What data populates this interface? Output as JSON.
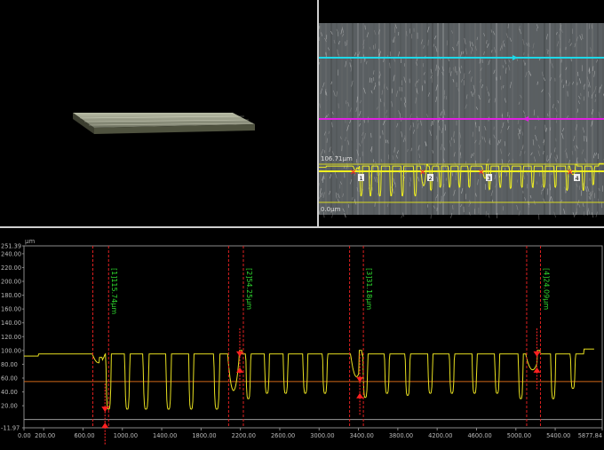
{
  "image_view": {
    "scale_top": "106.71μm",
    "scale_bottom": "0.0μm",
    "markers": [
      "1",
      "2",
      "3",
      "4"
    ]
  },
  "chart_data": {
    "type": "line",
    "unit": "μm",
    "xlim": [
      0,
      5877.84
    ],
    "ylim": [
      -11.97,
      251.39
    ],
    "y_ticks": [
      "251.39",
      "240.00",
      "220.00",
      "200.00",
      "180.00",
      "160.00",
      "140.00",
      "120.00",
      "100.00",
      "80.00",
      "60.00",
      "40.00",
      "20.00",
      "-11.97"
    ],
    "x_ticks": [
      "0.00",
      "200.00",
      "600.00",
      "1000.00",
      "1400.00",
      "1800.00",
      "2200.00",
      "2600.00",
      "3000.00",
      "3400.00",
      "3800.00",
      "4200.00",
      "4600.00",
      "5000.00",
      "5400.00",
      "5877.84"
    ],
    "reference_level": 55,
    "baseline_level": 0,
    "measurements": [
      {
        "label": "[1]115.74μm",
        "x_left": 700,
        "x_right": 860
      },
      {
        "label": "[2]54.25μm",
        "x_left": 2080,
        "x_right": 2230
      },
      {
        "label": "[3]31.18μm",
        "x_left": 3310,
        "x_right": 3450
      },
      {
        "label": "[4]24.09μm",
        "x_left": 5110,
        "x_right": 5250
      }
    ]
  }
}
